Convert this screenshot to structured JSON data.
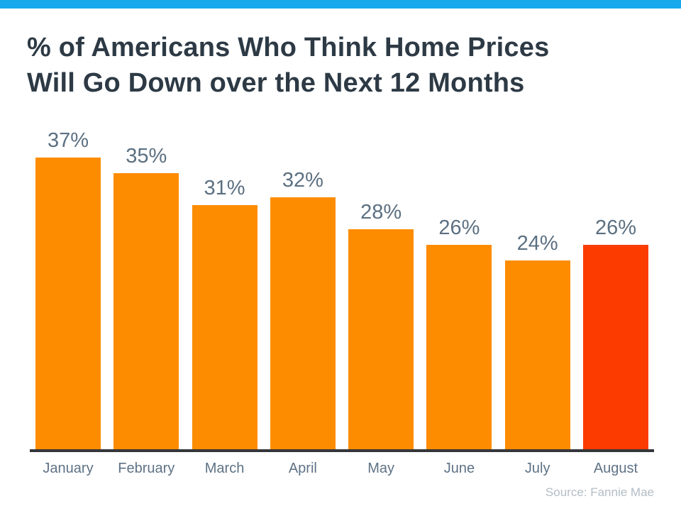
{
  "page": {
    "accent_color": "#18A9EC"
  },
  "chart_data": {
    "type": "bar",
    "title": "% of Americans Who Think Home Prices Will Go Down over the Next 12 Months",
    "title_lines": [
      "% of Americans Who Think Home Prices",
      "Will Go Down over the Next 12 Months"
    ],
    "categories": [
      "January",
      "February",
      "March",
      "April",
      "May",
      "June",
      "July",
      "August"
    ],
    "values": [
      37,
      35,
      31,
      32,
      28,
      26,
      24,
      26
    ],
    "data_labels": [
      "37%",
      "35%",
      "31%",
      "32%",
      "28%",
      "26%",
      "24%",
      "26%"
    ],
    "unit": "%",
    "ylim": [
      0,
      40
    ],
    "grid": false,
    "legend": false,
    "bar_color": "#FE8C00",
    "highlight_color": "#FB3B00",
    "highlight_index": 7,
    "value_label_color": "#5C7082",
    "axis_color": "#35363A",
    "source": "Source: Fannie Mae"
  }
}
